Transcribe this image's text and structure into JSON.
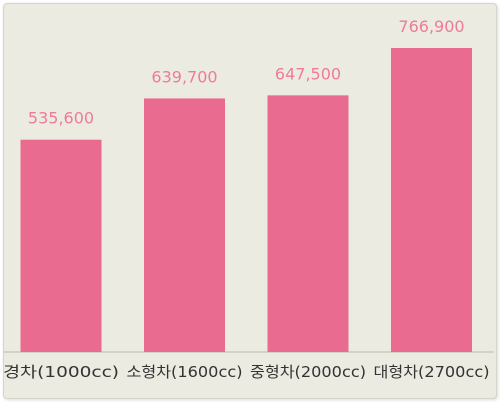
{
  "chart_data": {
    "type": "bar",
    "categories": [
      "경차(1000cc)",
      "소형차(1600cc)",
      "중형차(2000cc)",
      "대형차(2700cc)"
    ],
    "values": [
      535600,
      639700,
      647500,
      766900
    ],
    "value_labels": [
      "535,600",
      "639,700",
      "647,500",
      "766,900"
    ],
    "ylim": [
      0,
      800000
    ],
    "grid": false,
    "legend": "none",
    "bar_color": "#e96b8f",
    "label_color": "#ee7b97",
    "axis_label_color": "#333333"
  }
}
